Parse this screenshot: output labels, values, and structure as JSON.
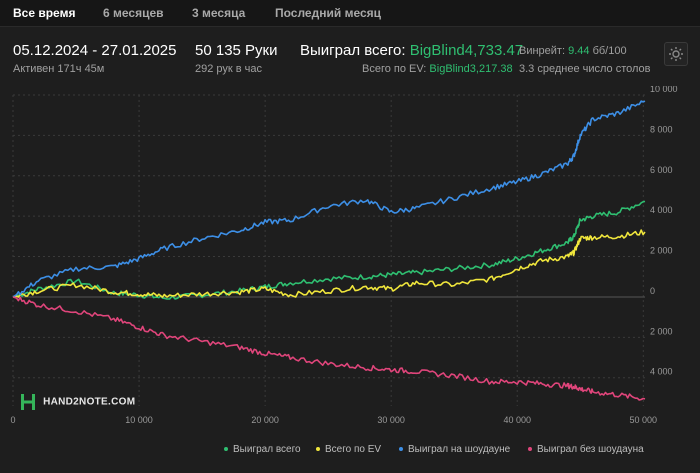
{
  "tabs": [
    {
      "label": "Все время",
      "active": true
    },
    {
      "label": "6 месяцев",
      "active": false
    },
    {
      "label": "3 месяца",
      "active": false
    },
    {
      "label": "Последний месяц",
      "active": false
    }
  ],
  "summary": {
    "date_range": "05.12.2024 - 27.01.2025",
    "active_time": "Активен 171ч 45м",
    "hands": "50 135 Руки",
    "hands_per_hour": "292 рук в час",
    "won_total_label": "Выиграл всего:",
    "won_total_value": "BigBlind4,733.47",
    "ev_total_label": "Всего по EV:",
    "ev_total_value": "BigBlind3,217.38",
    "winrate_label": "Винрейт:",
    "winrate_value": "9.44",
    "winrate_unit": "бб/100",
    "avg_tables": "3.3 среднее число столов"
  },
  "logo_text": "HAND2NOTE.COM",
  "icons": {
    "settings": "gear-icon",
    "logo": "hand2note-logo-icon"
  },
  "colors": {
    "won": "#2fbf71",
    "ev": "#f0e63c",
    "showdown": "#3d8fe6",
    "no_showdown": "#e0457b",
    "grid": "#3a3a3a",
    "background": "#1e1e1e"
  },
  "chart_data": {
    "type": "line",
    "xlim": [
      0,
      50135
    ],
    "ylim": [
      -5400,
      10000
    ],
    "x_ticks": [
      0,
      10000,
      20000,
      30000,
      40000,
      50000
    ],
    "x_tick_labels": [
      "0",
      "10 000",
      "20 000",
      "30 000",
      "40 000",
      "50 000"
    ],
    "y_ticks": [
      10000,
      8000,
      6000,
      4000,
      2000,
      0,
      -2000,
      -4000
    ],
    "y_tick_labels": [
      "10 000",
      "8 000",
      "6 000",
      "4 000",
      "2 000",
      "0",
      "2 000",
      "4 000"
    ],
    "grid": true,
    "legend_position": "bottom-right",
    "x": [
      0,
      2000,
      5000,
      8000,
      10000,
      12000,
      15000,
      18000,
      20000,
      22000,
      25000,
      28000,
      30000,
      32000,
      35000,
      38000,
      40000,
      42000,
      44000,
      44500,
      45000,
      46000,
      48000,
      50135
    ],
    "series": [
      {
        "name": "Выиграл всего",
        "color": "#2fbf71",
        "values": [
          0,
          400,
          800,
          200,
          100,
          -50,
          100,
          300,
          500,
          700,
          900,
          1000,
          1100,
          1200,
          1400,
          1600,
          1900,
          2300,
          2700,
          3000,
          3800,
          4000,
          4200,
          4733
        ]
      },
      {
        "name": "Всего по EV",
        "color": "#f0e63c",
        "values": [
          0,
          300,
          600,
          250,
          150,
          50,
          150,
          250,
          400,
          100,
          300,
          500,
          400,
          700,
          600,
          900,
          1400,
          1800,
          2000,
          2200,
          2900,
          2950,
          3000,
          3217
        ]
      },
      {
        "name": "Выиграл на шоудауне",
        "color": "#3d8fe6",
        "values": [
          0,
          800,
          1400,
          1500,
          1900,
          2400,
          2900,
          3300,
          3700,
          3800,
          4500,
          4800,
          4200,
          4400,
          4900,
          5400,
          5700,
          6100,
          6600,
          7000,
          8000,
          8800,
          9100,
          9700
        ]
      },
      {
        "name": "Выиграл без шоудауна",
        "color": "#e0457b",
        "values": [
          0,
          -400,
          -700,
          -1100,
          -1500,
          -1900,
          -2200,
          -2500,
          -2800,
          -3000,
          -3300,
          -3500,
          -3600,
          -3700,
          -3900,
          -4200,
          -4200,
          -4300,
          -4400,
          -4450,
          -4550,
          -4700,
          -4850,
          -5050
        ]
      }
    ]
  }
}
